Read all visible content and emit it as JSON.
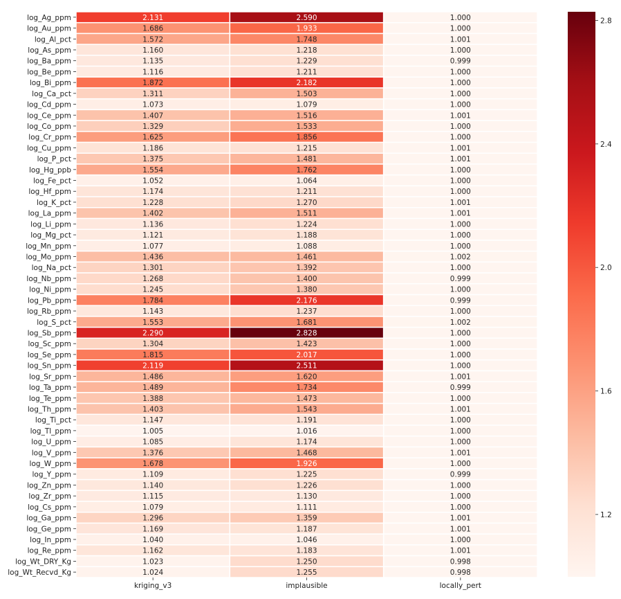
{
  "chart_data": {
    "type": "heatmap",
    "title": "",
    "xlabel": "",
    "ylabel": "",
    "colormap": "Reds",
    "vmin": 0.998,
    "vmax": 2.828,
    "colorbar_ticks": [
      "1.2",
      "1.6",
      "2.0",
      "2.4",
      "2.8"
    ],
    "colorbar_tick_values": [
      1.2,
      1.6,
      2.0,
      2.4,
      2.8
    ],
    "columns": [
      "kriging_v3",
      "implausible",
      "locally_pert"
    ],
    "rows": [
      "log_Ag_ppm",
      "log_Au_ppm",
      "log_Al_pct",
      "log_As_ppm",
      "log_Ba_ppm",
      "log_Be_ppm",
      "log_Bi_ppm",
      "log_Ca_pct",
      "log_Cd_ppm",
      "log_Ce_ppm",
      "log_Co_ppm",
      "log_Cr_ppm",
      "log_Cu_ppm",
      "log_P_pct",
      "log_Hg_ppb",
      "log_Fe_pct",
      "log_Hf_ppm",
      "log_K_pct",
      "log_La_ppm",
      "log_Li_ppm",
      "log_Mg_pct",
      "log_Mn_ppm",
      "log_Mo_ppm",
      "log_Na_pct",
      "log_Nb_ppm",
      "log_Ni_ppm",
      "log_Pb_ppm",
      "log_Rb_ppm",
      "log_S_pct",
      "log_Sb_ppm",
      "log_Sc_ppm",
      "log_Se_ppm",
      "log_Sn_ppm",
      "log_Sr_ppm",
      "log_Ta_ppm",
      "log_Te_ppm",
      "log_Th_ppm",
      "log_Ti_pct",
      "log_Tl_ppm",
      "log_U_ppm",
      "log_V_ppm",
      "log_W_ppm",
      "log_Y_ppm",
      "log_Zn_ppm",
      "log_Zr_ppm",
      "log_Cs_ppm",
      "log_Ga_ppm",
      "log_Ge_ppm",
      "log_In_ppm",
      "log_Re_ppm",
      "log_Wt_DRY_Kg",
      "log_Wt_Recvd_Kg"
    ],
    "values": [
      [
        "2.131",
        "2.590",
        "1.000"
      ],
      [
        "1.686",
        "1.933",
        "1.000"
      ],
      [
        "1.572",
        "1.748",
        "1.001"
      ],
      [
        "1.160",
        "1.218",
        "1.000"
      ],
      [
        "1.135",
        "1.229",
        "0.999"
      ],
      [
        "1.116",
        "1.211",
        "1.000"
      ],
      [
        "1.872",
        "2.182",
        "1.000"
      ],
      [
        "1.311",
        "1.503",
        "1.000"
      ],
      [
        "1.073",
        "1.079",
        "1.000"
      ],
      [
        "1.407",
        "1.516",
        "1.001"
      ],
      [
        "1.329",
        "1.533",
        "1.000"
      ],
      [
        "1.625",
        "1.856",
        "1.000"
      ],
      [
        "1.186",
        "1.215",
        "1.001"
      ],
      [
        "1.375",
        "1.481",
        "1.001"
      ],
      [
        "1.554",
        "1.762",
        "1.000"
      ],
      [
        "1.052",
        "1.064",
        "1.000"
      ],
      [
        "1.174",
        "1.211",
        "1.000"
      ],
      [
        "1.228",
        "1.270",
        "1.001"
      ],
      [
        "1.402",
        "1.511",
        "1.001"
      ],
      [
        "1.136",
        "1.224",
        "1.000"
      ],
      [
        "1.121",
        "1.188",
        "1.000"
      ],
      [
        "1.077",
        "1.088",
        "1.000"
      ],
      [
        "1.436",
        "1.461",
        "1.002"
      ],
      [
        "1.301",
        "1.392",
        "1.000"
      ],
      [
        "1.268",
        "1.400",
        "0.999"
      ],
      [
        "1.245",
        "1.380",
        "1.000"
      ],
      [
        "1.784",
        "2.176",
        "0.999"
      ],
      [
        "1.143",
        "1.237",
        "1.000"
      ],
      [
        "1.553",
        "1.681",
        "1.002"
      ],
      [
        "2.290",
        "2.828",
        "1.000"
      ],
      [
        "1.304",
        "1.423",
        "1.000"
      ],
      [
        "1.815",
        "2.017",
        "1.000"
      ],
      [
        "2.119",
        "2.511",
        "1.000"
      ],
      [
        "1.486",
        "1.620",
        "1.001"
      ],
      [
        "1.489",
        "1.734",
        "0.999"
      ],
      [
        "1.388",
        "1.473",
        "1.000"
      ],
      [
        "1.403",
        "1.543",
        "1.001"
      ],
      [
        "1.147",
        "1.191",
        "1.000"
      ],
      [
        "1.005",
        "1.016",
        "1.000"
      ],
      [
        "1.085",
        "1.174",
        "1.000"
      ],
      [
        "1.376",
        "1.468",
        "1.001"
      ],
      [
        "1.678",
        "1.926",
        "1.000"
      ],
      [
        "1.109",
        "1.225",
        "0.999"
      ],
      [
        "1.140",
        "1.226",
        "1.000"
      ],
      [
        "1.115",
        "1.130",
        "1.000"
      ],
      [
        "1.079",
        "1.111",
        "1.000"
      ],
      [
        "1.296",
        "1.359",
        "1.001"
      ],
      [
        "1.169",
        "1.187",
        "1.001"
      ],
      [
        "1.040",
        "1.046",
        "1.000"
      ],
      [
        "1.162",
        "1.183",
        "1.001"
      ],
      [
        "1.023",
        "1.250",
        "0.998"
      ],
      [
        "1.024",
        "1.255",
        "0.998"
      ]
    ]
  }
}
